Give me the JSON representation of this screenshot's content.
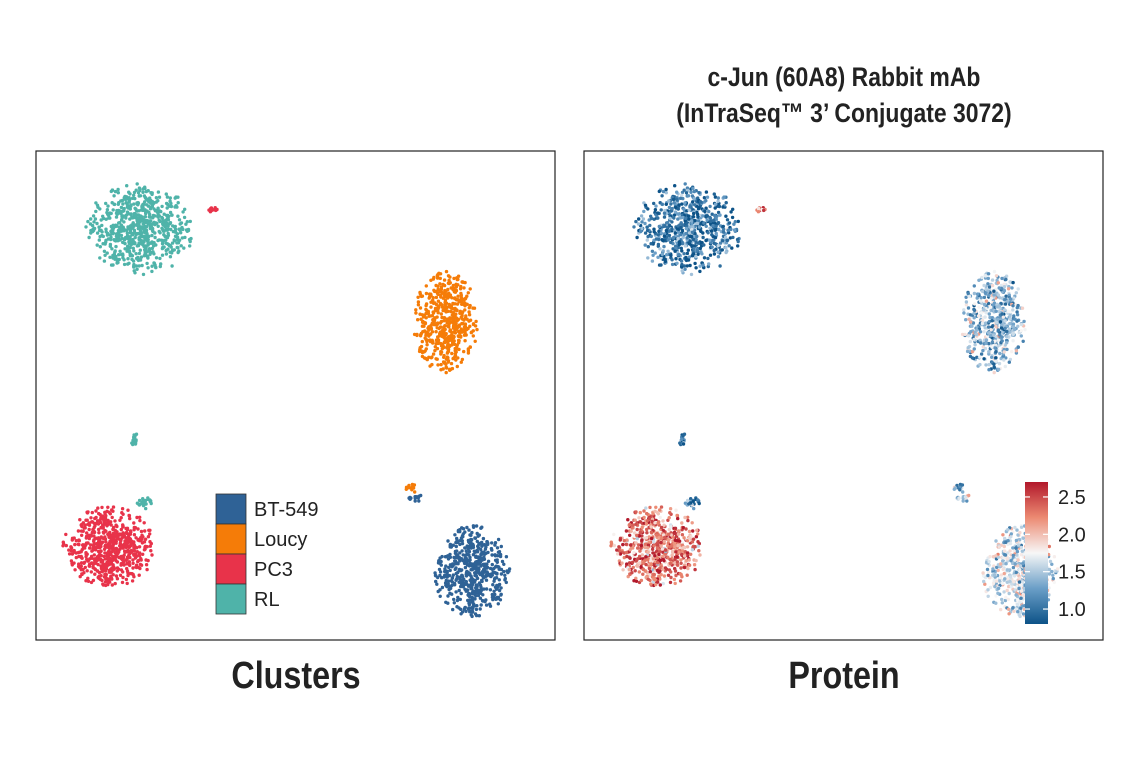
{
  "title_lines": [
    "c-Jun (60A8) Rabbit mAb",
    "(InTraSeq™ 3’ Conjugate 3072)"
  ],
  "chart_data": [
    {
      "type": "scatter",
      "title": "Clusters",
      "xlabel": "",
      "ylabel": "",
      "xlim": [
        0,
        100
      ],
      "ylim": [
        0,
        100
      ],
      "grid": false,
      "legend": {
        "placement": "bottom-center",
        "entries": [
          {
            "label": "BT-549",
            "color": "#2f6296"
          },
          {
            "label": "Loucy",
            "color": "#f57c08"
          },
          {
            "label": "PC3",
            "color": "#e8334a"
          },
          {
            "label": "RL",
            "color": "#4fb3a9"
          }
        ]
      },
      "clusters": [
        {
          "label": "RL",
          "center": [
            20,
            84
          ],
          "spread": [
            10,
            9
          ],
          "n": 700
        },
        {
          "label": "RL",
          "center": [
            19,
            41
          ],
          "spread": [
            0.6,
            1.5
          ],
          "n": 20
        },
        {
          "label": "RL",
          "center": [
            21,
            28
          ],
          "spread": [
            1.5,
            1.2
          ],
          "n": 25
        },
        {
          "label": "PC3",
          "center": [
            34,
            88
          ],
          "spread": [
            1.0,
            0.5
          ],
          "n": 12
        },
        {
          "label": "PC3",
          "center": [
            14,
            19
          ],
          "spread": [
            8.5,
            8
          ],
          "n": 650
        },
        {
          "label": "Loucy",
          "center": [
            79,
            65
          ],
          "spread": [
            6,
            10
          ],
          "n": 550
        },
        {
          "label": "Loucy",
          "center": [
            72,
            31
          ],
          "spread": [
            1.2,
            1.6
          ],
          "n": 12
        },
        {
          "label": "BT-549",
          "center": [
            73,
            29
          ],
          "spread": [
            1.5,
            0.8
          ],
          "n": 15
        },
        {
          "label": "BT-549",
          "center": [
            84,
            14
          ],
          "spread": [
            7,
            9
          ],
          "n": 550
        }
      ]
    },
    {
      "type": "scatter",
      "title": "Protein",
      "xlabel": "",
      "ylabel": "",
      "xlim": [
        0,
        100
      ],
      "ylim": [
        0,
        100
      ],
      "grid": false,
      "colorbar": {
        "range": [
          0.8,
          2.7
        ],
        "ticks": [
          "1.0",
          "1.5",
          "2.0",
          "2.5"
        ],
        "tick_values": [
          1.0,
          1.5,
          2.0,
          2.5
        ],
        "colormap": "RdBu_r",
        "low": "#0d5388",
        "mid": "#f7f7f7",
        "high": "#b2182b"
      },
      "cluster_mean_values": {
        "RL": 1.0,
        "Loucy": 1.4,
        "PC3": 2.3,
        "BT-549": 1.6
      }
    }
  ]
}
